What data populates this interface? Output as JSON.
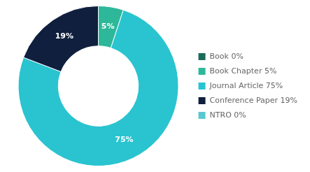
{
  "chart_data": {
    "type": "doughnut",
    "categories": [
      "Book 0%",
      "Book Chapter 5%",
      "Journal Article 75%",
      "Conference Paper 19%",
      "NTRO 0%"
    ],
    "values": [
      0.001,
      5,
      75,
      19,
      0.001
    ],
    "value_labels": [
      null,
      "5%",
      "75%",
      "19%",
      null
    ],
    "colors": [
      "#1a6b5a",
      "#2db89a",
      "#29c4d0",
      "#0f1f3d",
      "#5ac8d0"
    ],
    "data_labels": true,
    "legend": "right"
  }
}
